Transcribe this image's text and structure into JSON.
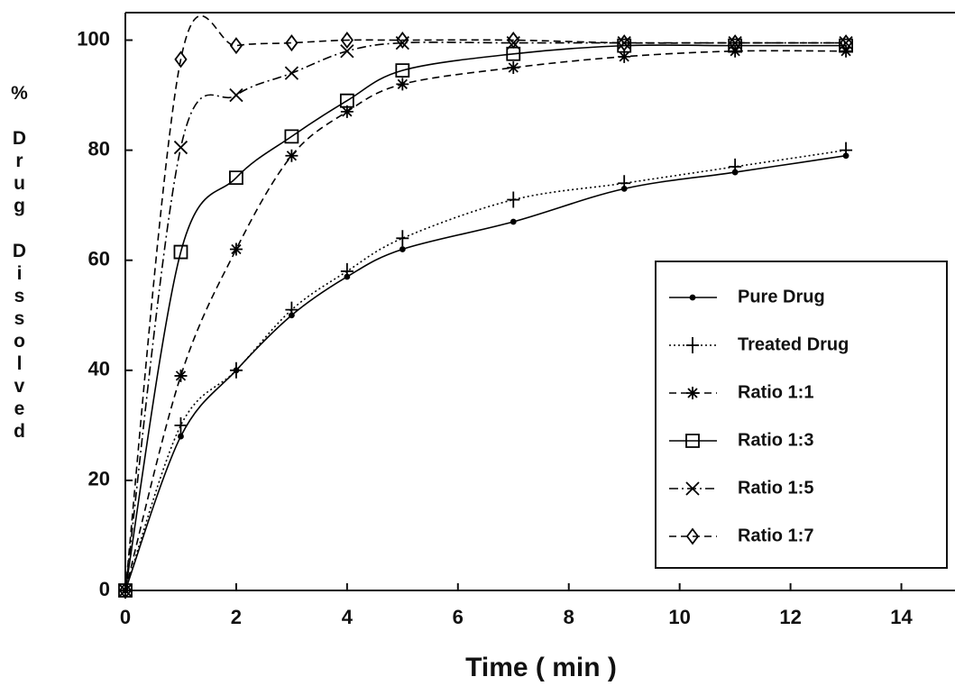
{
  "chart_data": {
    "type": "line",
    "x_label": "Time ( min )",
    "y_label": "% Drug Dissolved",
    "x": [
      0,
      1,
      2,
      3,
      4,
      5,
      7,
      9,
      11,
      13
    ],
    "series": [
      {
        "name": "Pure Drug",
        "color": "#000000",
        "line_style": "solid",
        "marker": "dot",
        "values": [
          0,
          28,
          40,
          50,
          57,
          62,
          67,
          73,
          76,
          79
        ]
      },
      {
        "name": "Treated Drug",
        "color": "#000000",
        "line_style": "dotted",
        "marker": "plus",
        "values": [
          0,
          30,
          40,
          51,
          58,
          64,
          71,
          74,
          77,
          80
        ]
      },
      {
        "name": "Ratio 1:1",
        "color": "#000000",
        "line_style": "dashed",
        "marker": "asterisk",
        "values": [
          0,
          39,
          62,
          79,
          87,
          92,
          95,
          97,
          98,
          98
        ]
      },
      {
        "name": "Ratio 1:3",
        "color": "#000000",
        "line_style": "solid",
        "marker": "square",
        "values": [
          0,
          61.5,
          75,
          82.5,
          89,
          94.5,
          97.5,
          99,
          99,
          99
        ]
      },
      {
        "name": "Ratio 1:5",
        "color": "#000000",
        "line_style": "dashdot",
        "marker": "x",
        "values": [
          0,
          80.5,
          90,
          94,
          98,
          99.5,
          99.5,
          99.5,
          99.5,
          99.5
        ]
      },
      {
        "name": "Ratio 1:7",
        "color": "#000000",
        "line_style": "dashed",
        "marker": "diamond",
        "values": [
          0,
          96.5,
          99,
          99.5,
          100,
          100,
          100,
          99.5,
          99.5,
          99.5
        ]
      }
    ],
    "xlim": [
      0,
      15
    ],
    "ylim": [
      0,
      105
    ],
    "xticks": [
      0,
      2,
      4,
      6,
      8,
      10,
      12,
      14
    ],
    "yticks": [
      0,
      20,
      40,
      60,
      80,
      100
    ],
    "grid": false,
    "legend_position": "lower right"
  }
}
